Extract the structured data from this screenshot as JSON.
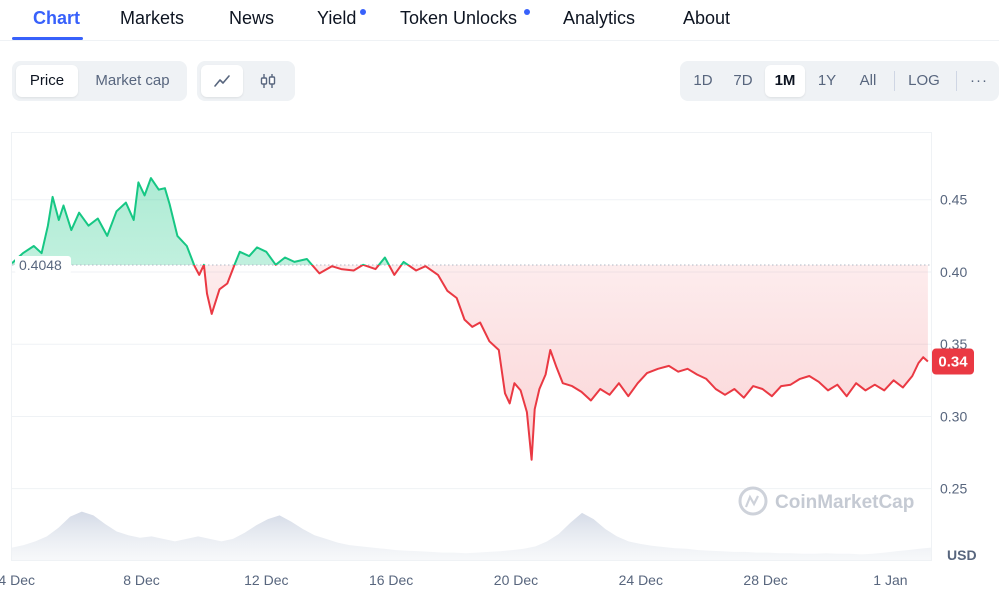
{
  "tabs": [
    {
      "label": "Chart",
      "active": true,
      "dot": false
    },
    {
      "label": "Markets",
      "active": false,
      "dot": false
    },
    {
      "label": "News",
      "active": false,
      "dot": false
    },
    {
      "label": "Yield",
      "active": false,
      "dot": true
    },
    {
      "label": "Token Unlocks",
      "active": false,
      "dot": true
    },
    {
      "label": "Analytics",
      "active": false,
      "dot": false
    },
    {
      "label": "About",
      "active": false,
      "dot": false
    }
  ],
  "toggle": {
    "price": "Price",
    "market_cap": "Market cap",
    "selected": "Price"
  },
  "chart_types": {
    "line_icon": "line-chart-icon",
    "candle_icon": "candlestick-icon",
    "selected": "line"
  },
  "ranges": {
    "items": [
      "1D",
      "7D",
      "1M",
      "1Y",
      "All"
    ],
    "selected": "1M",
    "log": "LOG",
    "more": "···"
  },
  "colors": {
    "up": "#16c784",
    "down": "#ea3943",
    "accent": "#3861fb"
  },
  "watermark": "CoinMarketCap",
  "chart_data": {
    "type": "line",
    "currency": "USD",
    "reference_price": 0.4048,
    "reference_label": "0.4048",
    "current_price_label": "0.34",
    "ylim": [
      0.22,
      0.5
    ],
    "y_ticks": [
      0.25,
      0.3,
      0.35,
      0.4,
      0.45
    ],
    "y_tick_labels": [
      "0.25",
      "0.30",
      "0.35",
      "0.40",
      "0.45"
    ],
    "x_ticks": [
      4,
      8,
      12,
      16,
      20,
      24,
      28,
      32
    ],
    "x_tick_labels": [
      "4 Dec",
      "8 Dec",
      "12 Dec",
      "16 Dec",
      "20 Dec",
      "24 Dec",
      "28 Dec",
      "1 Jan"
    ],
    "x_unit": "day (Dec; 32 = 1 Jan)",
    "series": [
      {
        "x": [
          3.85,
          4.2,
          4.55,
          4.8,
          5.0,
          5.15,
          5.35,
          5.5,
          5.75,
          6.0,
          6.3,
          6.6,
          6.9,
          7.2,
          7.5,
          7.75,
          7.9,
          8.1,
          8.3,
          8.55,
          8.75,
          8.9,
          9.15,
          9.45,
          9.7,
          9.85,
          10.0,
          10.1,
          10.25,
          10.5,
          10.75,
          11.0,
          11.15,
          11.45,
          11.7,
          12.0,
          12.3,
          12.6,
          12.9,
          13.3,
          13.7,
          14.1,
          14.4,
          14.8,
          15.1,
          15.5,
          15.8,
          16.1,
          16.4,
          16.8,
          17.1,
          17.5,
          17.8,
          18.1,
          18.35,
          18.6,
          18.85,
          19.15,
          19.45,
          19.65,
          19.8,
          19.95,
          20.15,
          20.35,
          20.5,
          20.6,
          20.75,
          20.95,
          21.1,
          21.3,
          21.5,
          21.8,
          22.1,
          22.4,
          22.7,
          23.0,
          23.3,
          23.6,
          23.9,
          24.2,
          24.55,
          24.9,
          25.2,
          25.5,
          25.8,
          26.1,
          26.4,
          26.7,
          27.0,
          27.3,
          27.6,
          27.9,
          28.2,
          28.5,
          28.8,
          29.1,
          29.4,
          29.7,
          30.0,
          30.3,
          30.6,
          30.9,
          31.2,
          31.5,
          31.8,
          32.1,
          32.4,
          32.7,
          32.9,
          33.05,
          33.2
        ],
        "y": [
          0.406,
          0.413,
          0.418,
          0.413,
          0.432,
          0.452,
          0.436,
          0.446,
          0.429,
          0.441,
          0.432,
          0.437,
          0.425,
          0.442,
          0.448,
          0.436,
          0.462,
          0.453,
          0.465,
          0.457,
          0.458,
          0.447,
          0.425,
          0.418,
          0.404,
          0.398,
          0.405,
          0.385,
          0.371,
          0.388,
          0.392,
          0.406,
          0.414,
          0.411,
          0.417,
          0.414,
          0.405,
          0.41,
          0.407,
          0.409,
          0.399,
          0.404,
          0.402,
          0.401,
          0.405,
          0.402,
          0.41,
          0.398,
          0.407,
          0.401,
          0.404,
          0.398,
          0.387,
          0.382,
          0.367,
          0.362,
          0.365,
          0.352,
          0.346,
          0.316,
          0.309,
          0.323,
          0.318,
          0.303,
          0.27,
          0.305,
          0.319,
          0.329,
          0.346,
          0.334,
          0.323,
          0.321,
          0.317,
          0.311,
          0.319,
          0.315,
          0.323,
          0.314,
          0.323,
          0.33,
          0.333,
          0.335,
          0.331,
          0.333,
          0.329,
          0.326,
          0.319,
          0.315,
          0.319,
          0.313,
          0.321,
          0.319,
          0.314,
          0.321,
          0.322,
          0.326,
          0.328,
          0.324,
          0.318,
          0.322,
          0.314,
          0.323,
          0.318,
          0.322,
          0.318,
          0.325,
          0.32,
          0.328,
          0.337,
          0.341,
          0.338
        ]
      }
    ],
    "volume_relative": [
      0.2,
      0.24,
      0.3,
      0.38,
      0.52,
      0.7,
      0.78,
      0.72,
      0.58,
      0.46,
      0.4,
      0.36,
      0.38,
      0.34,
      0.3,
      0.34,
      0.38,
      0.34,
      0.3,
      0.34,
      0.44,
      0.56,
      0.66,
      0.72,
      0.62,
      0.5,
      0.4,
      0.34,
      0.28,
      0.24,
      0.22,
      0.2,
      0.18,
      0.16,
      0.15,
      0.14,
      0.13,
      0.12,
      0.12,
      0.11,
      0.12,
      0.13,
      0.14,
      0.16,
      0.18,
      0.22,
      0.3,
      0.42,
      0.6,
      0.76,
      0.66,
      0.5,
      0.38,
      0.3,
      0.26,
      0.23,
      0.21,
      0.19,
      0.18,
      0.16,
      0.15,
      0.14,
      0.13,
      0.13,
      0.12,
      0.12,
      0.11,
      0.11,
      0.1,
      0.1,
      0.11,
      0.1,
      0.1,
      0.09,
      0.1,
      0.12,
      0.14,
      0.16,
      0.18,
      0.2
    ]
  }
}
